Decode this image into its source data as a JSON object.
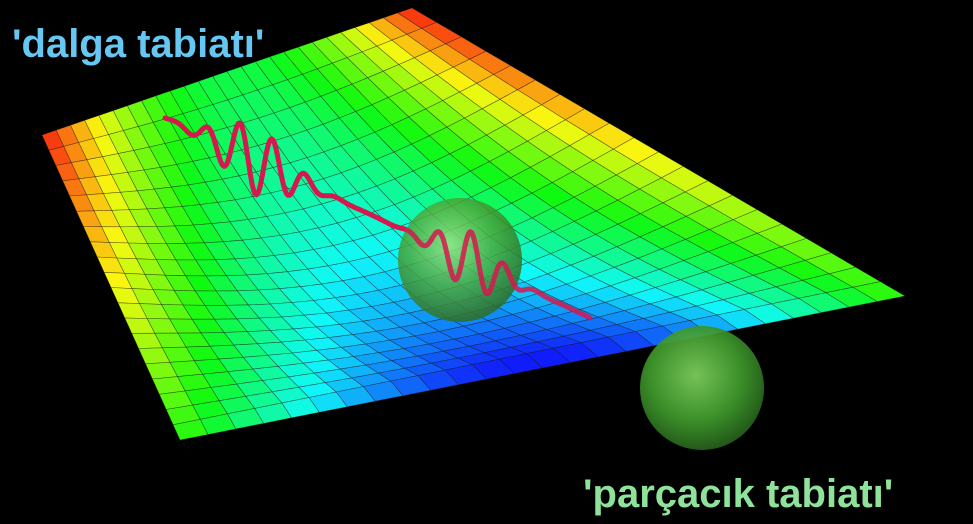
{
  "labels": {
    "wave": "'dalga tabiatı'",
    "particle": "'parçacık tabiatı'"
  },
  "colors": {
    "background": "#000000",
    "wave_label": "#66c7f2",
    "particle_label": "#8ee29a",
    "wave_packet": "#d6184f",
    "sphere": "#5cb83a"
  },
  "illustration": {
    "surface": "rainbow-colored 3D wireframe saddle surface",
    "wave_packet": "red wave packet squiggle",
    "spheres": [
      "translucent green sphere on the surface",
      "green sphere in front of the surface"
    ]
  }
}
